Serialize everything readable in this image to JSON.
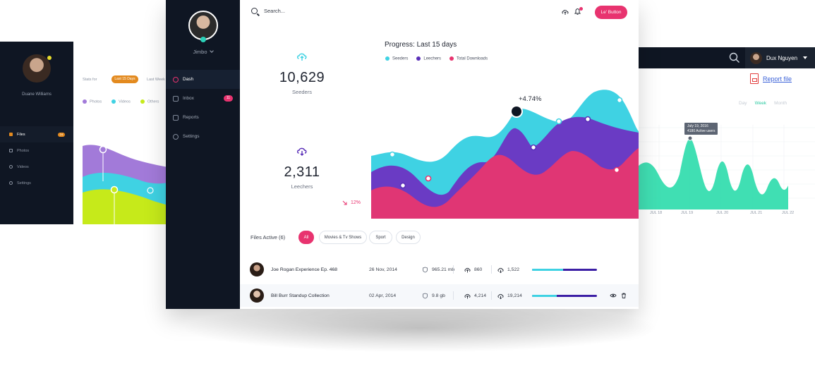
{
  "left_screen": {
    "user": "Duane Williams",
    "stats_for": "Stats for",
    "range_active": "Last 15 Days",
    "range_other": "Last Week",
    "legend": [
      {
        "label": "Photos",
        "color": "#a27ad9"
      },
      {
        "label": "Videos",
        "color": "#3fd2e3"
      },
      {
        "label": "Others",
        "color": "#c6ea1a"
      }
    ],
    "nav": [
      {
        "label": "Files",
        "icon": "folder-icon",
        "active": true,
        "badge": "24"
      },
      {
        "label": "Photos",
        "icon": "camera-icon"
      },
      {
        "label": "Videos",
        "icon": "play-icon"
      },
      {
        "label": "Settings",
        "icon": "gear-icon"
      }
    ]
  },
  "right_screen": {
    "user": "Dux Nguyen",
    "report_link": "Report file",
    "ranges": [
      "Day",
      "Week",
      "Month"
    ],
    "active_range": "Week",
    "tooltip_date": "July 19, 2016",
    "tooltip_value": "4180 Active users",
    "x_ticks": [
      "JUL 18",
      "JUL 19",
      "JUL 20",
      "JUL 21",
      "JUL 22"
    ],
    "accent": "#2bdcab"
  },
  "main": {
    "user": "Jimbo",
    "nav": [
      {
        "label": "Dash",
        "icon": "dashboard-icon",
        "active": true
      },
      {
        "label": "Inbox",
        "icon": "inbox-icon",
        "badge": "11"
      },
      {
        "label": "Reports",
        "icon": "reports-icon"
      },
      {
        "label": "Settings",
        "icon": "gear-icon"
      }
    ],
    "search_placeholder": "Search...",
    "button_label": "Le' Button",
    "stats": {
      "seeders_value": "10,629",
      "seeders_label": "Seeders",
      "leechers_value": "2,311",
      "leechers_label": "Leechers",
      "delta": "12%"
    },
    "progress_label": "Progress:",
    "progress_range": "Last 15 days",
    "annotation": "+4.74%",
    "files_active": "Files Active (6)",
    "filters": [
      "All",
      "Movies & Tv Shows",
      "Sport",
      "Design"
    ],
    "active_filter": "All",
    "files": [
      {
        "name": "Joe Rogan Experience Ep. 468",
        "date": "26 Nov, 2014",
        "size": "965.21 mb",
        "seeds": "860",
        "leech": "1,522",
        "progress": 0.48
      },
      {
        "name": "Bill Burr Standup Collection",
        "date": "02 Apr, 2014",
        "size": "9.8 gb",
        "seeds": "4,214",
        "leech": "19,214",
        "progress": 0.38
      }
    ],
    "colors": {
      "accent": "#e8336f",
      "seeders": "#3fd2e3",
      "leechers": "#5a2fb8",
      "downloads": "#e8336f"
    }
  },
  "chart_data": {
    "type": "area",
    "title": "Progress: Last 15 days",
    "series": [
      {
        "name": "Seeders",
        "color": "#3fd2e3"
      },
      {
        "name": "Leechers",
        "color": "#5a2fb8"
      },
      {
        "name": "Total Downloads",
        "color": "#e8336f"
      }
    ],
    "annotations": [
      "+4.74%"
    ]
  }
}
